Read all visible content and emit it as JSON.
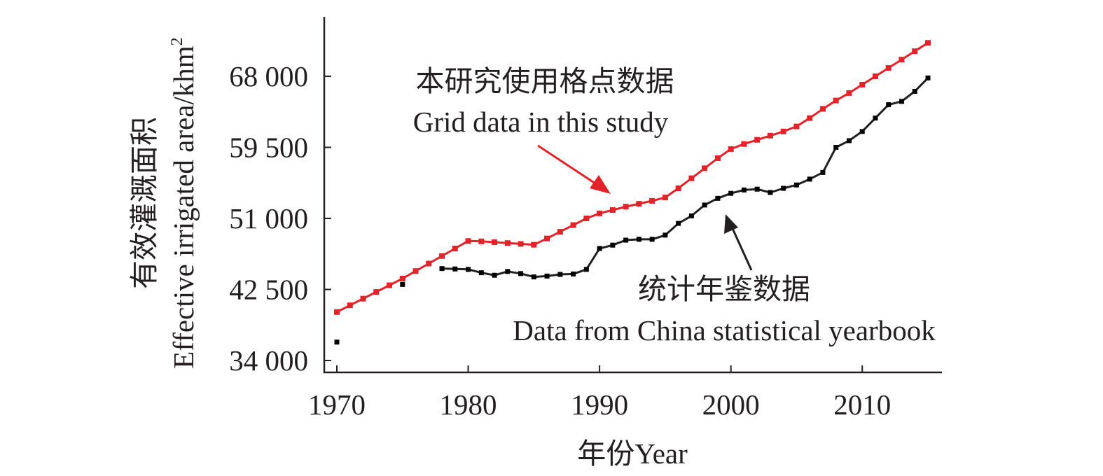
{
  "chart_data": {
    "type": "line",
    "title": "",
    "xlabel": "年份Year",
    "ylabel_cn": "有效灌溉面积",
    "ylabel_en": "Effective irrigated area/khm",
    "ylabel_unit_superscript": "2",
    "xlim": [
      1969,
      2016
    ],
    "ylim": [
      32500,
      75000
    ],
    "x_ticks": [
      1970,
      1980,
      1990,
      2000,
      2010
    ],
    "y_ticks": [
      34000,
      42500,
      51000,
      59500,
      68000
    ],
    "y_tick_labels": [
      "34 000",
      "42 500",
      "51 000",
      "59 500",
      "68 000"
    ],
    "grid": false,
    "legend": "none",
    "series": [
      {
        "id": "grid",
        "color": "#e2232a",
        "annotation_cn": "本研究使用格点数据",
        "annotation_en": "Grid data in this study",
        "segments": [
          {
            "x": [
              1970,
              1971,
              1972,
              1973,
              1974,
              1975,
              1976,
              1977,
              1978,
              1979,
              1980,
              1981,
              1982,
              1983,
              1984,
              1985,
              1986,
              1987,
              1988,
              1989,
              1990,
              1991,
              1992,
              1993,
              1994,
              1995,
              1996,
              1997,
              1998,
              1999,
              2000,
              2001,
              2002,
              2003,
              2004,
              2005,
              2006,
              2007,
              2008,
              2009,
              2010,
              2011,
              2012,
              2013,
              2014,
              2015
            ],
            "y": [
              39800,
              40600,
              41400,
              42200,
              43000,
              43800,
              44700,
              45600,
              46500,
              47400,
              48300,
              48250,
              48150,
              48050,
              47950,
              47850,
              48600,
              49400,
              50200,
              51000,
              51600,
              52000,
              52400,
              52750,
              53100,
              53500,
              54600,
              55800,
              57000,
              58200,
              59300,
              59900,
              60400,
              60900,
              61400,
              62000,
              63000,
              64100,
              65100,
              66000,
              67000,
              68000,
              69000,
              70000,
              71000,
              72000
            ]
          }
        ]
      },
      {
        "id": "yearbook",
        "color": "#231f20",
        "annotation_cn": "统计年鉴数据",
        "annotation_en": "Data from China statistical yearbook",
        "segments": [
          {
            "x": [
              1970
            ],
            "y": [
              36200
            ]
          },
          {
            "x": [
              1975
            ],
            "y": [
              43100
            ]
          },
          {
            "x": [
              1978,
              1979,
              1980,
              1981,
              1982,
              1983,
              1984,
              1985,
              1986,
              1987,
              1988,
              1989,
              1990,
              1991,
              1992,
              1993,
              1994,
              1995,
              1996,
              1997,
              1998,
              1999,
              2000,
              2001,
              2002,
              2003,
              2004,
              2005,
              2006,
              2007,
              2008,
              2009,
              2010,
              2011,
              2012,
              2013,
              2014,
              2015
            ],
            "y": [
              45000,
              44950,
              44900,
              44500,
              44200,
              44650,
              44400,
              44000,
              44100,
              44300,
              44350,
              44900,
              47400,
              47800,
              48400,
              48500,
              48500,
              49000,
              50400,
              51300,
              52600,
              53400,
              54000,
              54400,
              54500,
              54100,
              54600,
              55000,
              55700,
              56500,
              59500,
              60300,
              61400,
              63000,
              64600,
              65000,
              66200,
              67800
            ]
          }
        ]
      }
    ]
  }
}
